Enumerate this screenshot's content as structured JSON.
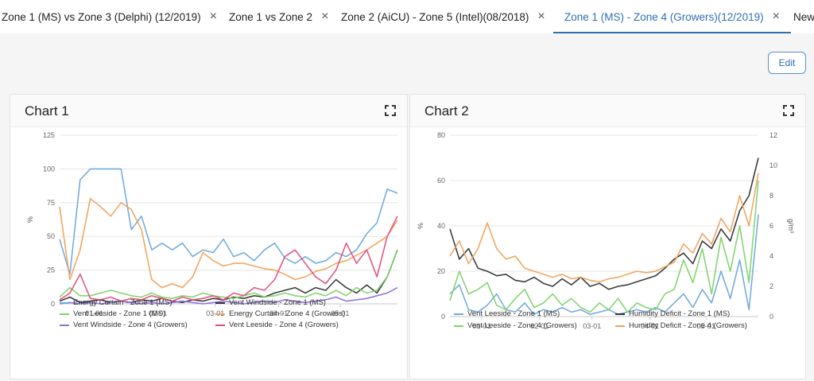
{
  "tabs": [
    {
      "label": "Zone 1 (MS) vs Zone 3 (Delphi) (12/2019)",
      "closable": true,
      "active": false
    },
    {
      "label": "Zone 1 vs Zone 2",
      "closable": true,
      "active": false
    },
    {
      "label": "Zone 2 (AiCU) - Zone 5 (Intel)(08/2018)",
      "closable": true,
      "active": false
    },
    {
      "label": "Zone 1 (MS) - Zone 4 (Growers)(12/2019)",
      "closable": true,
      "active": true
    },
    {
      "label": "New",
      "closable": false,
      "active": false
    }
  ],
  "close_glyph": "×",
  "edit_label": "Edit",
  "accent_color": "#2f6fb3",
  "chart_data": [
    {
      "type": "line",
      "title": "Chart 1",
      "ylabel": "%",
      "ylim": [
        0,
        125
      ],
      "yticks": [
        "0",
        "25",
        "50",
        "75",
        "100",
        "125"
      ],
      "xticks": [
        "01-01",
        "02-01",
        "03-01",
        "04-01",
        "05-01"
      ],
      "x": [
        "12-15",
        "12-20",
        "12-25",
        "12-30",
        "01-04",
        "01-09",
        "01-14",
        "01-19",
        "01-24",
        "01-29",
        "02-03",
        "02-08",
        "02-13",
        "02-18",
        "02-23",
        "02-28",
        "03-05",
        "03-10",
        "03-15",
        "03-20",
        "03-25",
        "03-30",
        "04-04",
        "04-09",
        "04-14",
        "04-19",
        "04-24",
        "04-29",
        "05-04",
        "05-09",
        "05-14",
        "05-19",
        "05-24",
        "05-29"
      ],
      "grid": true,
      "legend_position": "bottom",
      "series": [
        {
          "name": "Energy Curtain - Zone 1 (MS)",
          "color": "#6fa8dc",
          "values": [
            48,
            22,
            92,
            100,
            100,
            100,
            100,
            55,
            65,
            40,
            45,
            40,
            45,
            35,
            40,
            38,
            48,
            35,
            38,
            32,
            40,
            45,
            34,
            30,
            35,
            30,
            32,
            38,
            35,
            40,
            52,
            60,
            85,
            82
          ]
        },
        {
          "name": "Vent Windside - Zone 1 (MS)",
          "color": "#333333",
          "values": [
            2,
            5,
            1,
            2,
            3,
            1,
            2,
            1,
            3,
            2,
            4,
            2,
            1,
            3,
            2,
            4,
            3,
            5,
            4,
            6,
            5,
            8,
            10,
            12,
            8,
            12,
            10,
            18,
            12,
            8,
            14,
            8,
            20,
            40
          ]
        },
        {
          "name": "Vent Leeside - Zone 1 (MS)",
          "color": "#7ed36a",
          "values": [
            5,
            12,
            6,
            6,
            8,
            10,
            8,
            6,
            5,
            8,
            5,
            4,
            6,
            5,
            8,
            6,
            5,
            4,
            6,
            8,
            5,
            6,
            8,
            6,
            5,
            8,
            6,
            10,
            6,
            12,
            8,
            10,
            20,
            40
          ]
        },
        {
          "name": "Energy Curtain - Zone 4 (Growers)",
          "color": "#f0a25a",
          "values": [
            72,
            18,
            40,
            78,
            72,
            65,
            75,
            70,
            55,
            18,
            12,
            15,
            12,
            20,
            38,
            32,
            28,
            30,
            30,
            28,
            26,
            25,
            22,
            18,
            20,
            24,
            26,
            30,
            32,
            36,
            40,
            45,
            50,
            62
          ]
        },
        {
          "name": "Vent Windside - Zone 4 (Growers)",
          "color": "#8e6ee0",
          "values": [
            0,
            1,
            0,
            1,
            0,
            1,
            2,
            1,
            0,
            1,
            0,
            1,
            2,
            1,
            0,
            1,
            2,
            1,
            0,
            1,
            2,
            1,
            3,
            2,
            1,
            2,
            3,
            5,
            2,
            3,
            4,
            6,
            8,
            12
          ]
        },
        {
          "name": "Vent Leeside - Zone 4 (Growers)",
          "color": "#e0507a",
          "values": [
            3,
            8,
            22,
            4,
            3,
            5,
            2,
            4,
            3,
            6,
            4,
            2,
            5,
            3,
            4,
            6,
            3,
            8,
            6,
            12,
            10,
            18,
            35,
            40,
            30,
            20,
            15,
            25,
            45,
            30,
            40,
            20,
            50,
            65
          ]
        }
      ]
    },
    {
      "type": "line",
      "title": "Chart 2",
      "ylabel": "%",
      "y2label": "g/m³",
      "ylim": [
        0,
        80
      ],
      "y2lim": [
        0,
        12
      ],
      "yticks": [
        "0",
        "20",
        "40",
        "60",
        "80"
      ],
      "y2ticks": [
        "0",
        "2",
        "4",
        "6",
        "8",
        "10",
        "12"
      ],
      "xticks": [
        "01-01",
        "02-01",
        "03-01",
        "04-01",
        "05-01"
      ],
      "x": [
        "12-15",
        "12-20",
        "12-25",
        "12-30",
        "01-04",
        "01-09",
        "01-14",
        "01-19",
        "01-24",
        "01-29",
        "02-03",
        "02-08",
        "02-13",
        "02-18",
        "02-23",
        "02-28",
        "03-05",
        "03-10",
        "03-15",
        "03-20",
        "03-25",
        "03-30",
        "04-04",
        "04-09",
        "04-14",
        "04-19",
        "04-24",
        "04-29",
        "05-04",
        "05-09",
        "05-14",
        "05-19",
        "05-24",
        "05-29"
      ],
      "grid": true,
      "legend_position": "bottom",
      "series": [
        {
          "name": "Vent Leeside - Zone 1 (MS)",
          "axis": "left",
          "color": "#6fa8dc",
          "values": [
            10,
            14,
            3,
            2,
            5,
            10,
            3,
            2,
            6,
            1,
            3,
            2,
            4,
            2,
            3,
            1,
            2,
            3,
            1,
            2,
            3,
            2,
            4,
            2,
            6,
            10,
            4,
            12,
            6,
            20,
            8,
            25,
            3,
            45
          ]
        },
        {
          "name": "Humidity Deficit - Zone 1 (MS)",
          "axis": "right",
          "color": "#333333",
          "values": [
            5.8,
            3.8,
            4.5,
            3.2,
            3.0,
            2.7,
            2.8,
            2.4,
            2.3,
            2.6,
            2.2,
            2.0,
            2.5,
            2.1,
            2.6,
            2.0,
            2.2,
            1.8,
            2.0,
            2.1,
            2.3,
            2.5,
            2.7,
            3.2,
            3.8,
            4.2,
            3.5,
            5.0,
            4.5,
            5.8,
            5.0,
            7.0,
            8.0,
            10.5
          ]
        },
        {
          "name": "Vent Leeside - Zone 4 (Growers)",
          "axis": "left",
          "color": "#7ed36a",
          "values": [
            7,
            20,
            10,
            12,
            15,
            5,
            3,
            8,
            12,
            4,
            6,
            10,
            5,
            8,
            4,
            2,
            6,
            3,
            8,
            2,
            6,
            4,
            3,
            10,
            12,
            25,
            15,
            30,
            10,
            35,
            20,
            40,
            15,
            60
          ]
        },
        {
          "name": "Humidity Deficit - Zone 4 (Growers)",
          "axis": "right",
          "color": "#f0a25a",
          "values": [
            4.0,
            5.0,
            3.5,
            4.5,
            6.2,
            4.5,
            3.8,
            4.0,
            3.2,
            3.0,
            2.8,
            2.6,
            2.8,
            2.5,
            2.6,
            2.4,
            2.3,
            2.5,
            2.6,
            2.8,
            3.0,
            2.9,
            3.0,
            3.3,
            3.6,
            4.8,
            4.2,
            5.5,
            4.8,
            6.5,
            5.6,
            8.0,
            6.0,
            9.5
          ]
        }
      ]
    }
  ]
}
